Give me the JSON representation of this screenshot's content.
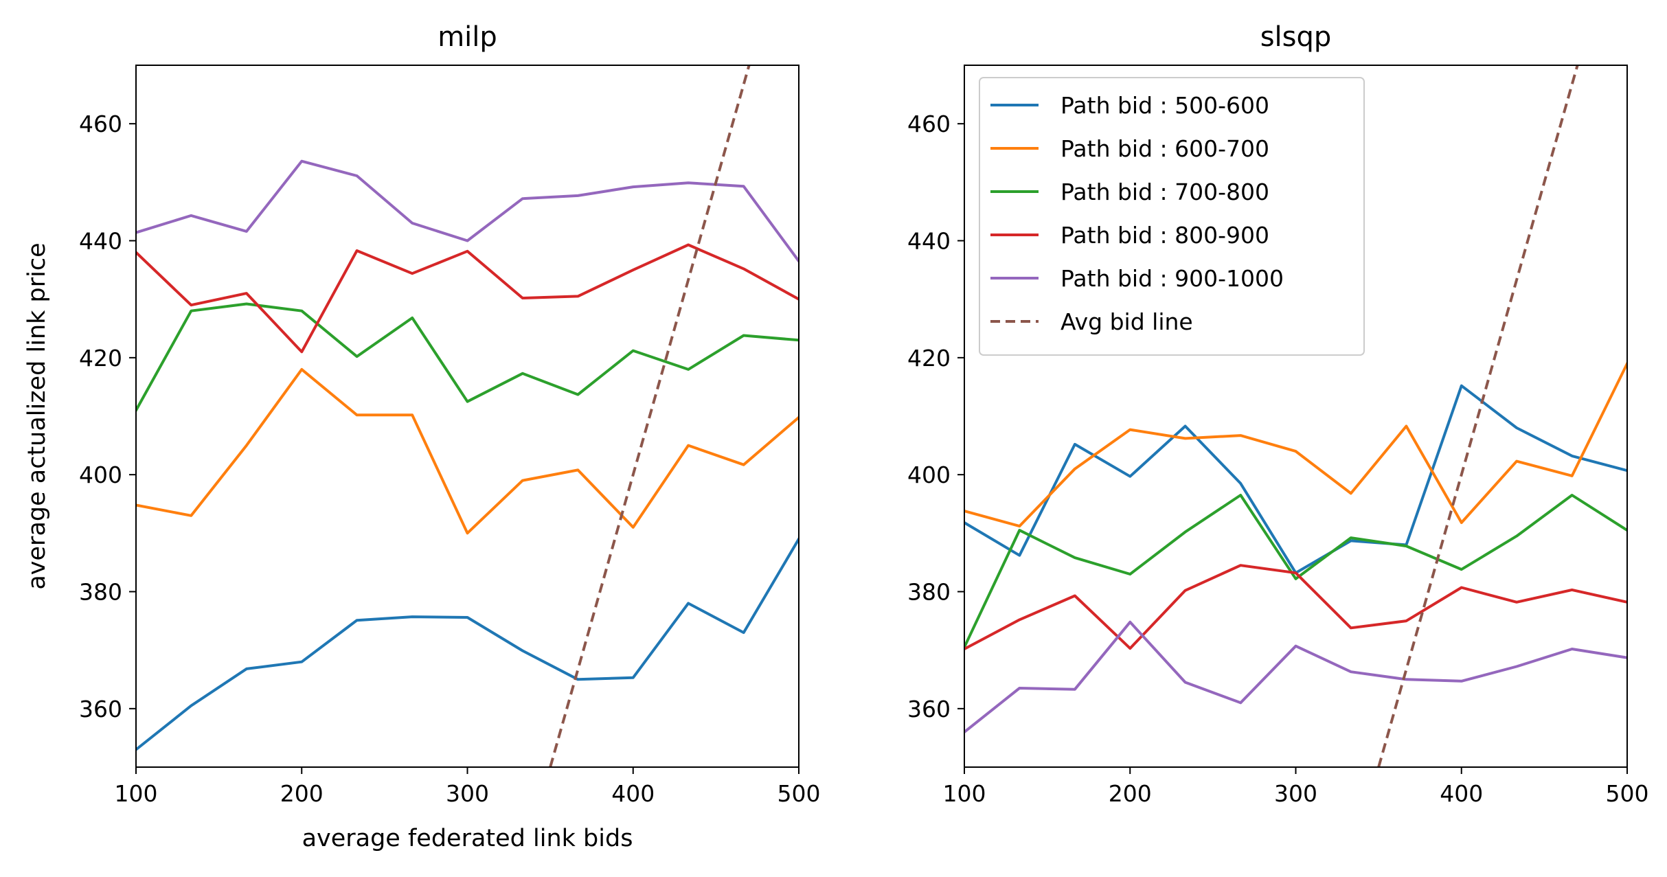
{
  "chart_data": [
    {
      "type": "line",
      "title": "milp",
      "xlabel": "average federated link bids",
      "ylabel": "average actualized link price",
      "xlim": [
        100,
        500
      ],
      "ylim": [
        350,
        470
      ],
      "xticks": [
        "100",
        "200",
        "300",
        "400",
        "500"
      ],
      "yticks": [
        "360",
        "380",
        "400",
        "420",
        "440",
        "460"
      ],
      "grid": false,
      "x": [
        100,
        133.3,
        166.7,
        200,
        233.3,
        266.7,
        300,
        333.3,
        366.7,
        400,
        433.3,
        466.7,
        500
      ],
      "series": [
        {
          "name": "Path bid : 500-600",
          "color": "#1f77b4",
          "values": [
            353.0,
            360.5,
            366.8,
            368.0,
            375.1,
            375.7,
            375.6,
            369.9,
            365.0,
            365.3,
            378.0,
            373.0,
            389.0
          ]
        },
        {
          "name": "Path bid : 600-700",
          "color": "#ff7f0e",
          "values": [
            394.8,
            393.0,
            405.0,
            418.0,
            410.2,
            410.2,
            390.0,
            399.0,
            400.8,
            391.0,
            405.0,
            401.7,
            409.8
          ]
        },
        {
          "name": "Path bid : 700-800",
          "color": "#2ca02c",
          "values": [
            411.0,
            428.0,
            429.2,
            428.0,
            420.2,
            426.8,
            412.5,
            417.3,
            413.7,
            421.2,
            418.0,
            423.8,
            423.0
          ]
        },
        {
          "name": "Path bid : 800-900",
          "color": "#d62728",
          "values": [
            438.0,
            429.0,
            431.0,
            421.0,
            438.3,
            434.4,
            438.2,
            430.2,
            430.5,
            435.0,
            439.3,
            435.2,
            430.0
          ]
        },
        {
          "name": "Path bid : 900-1000",
          "color": "#9467bd",
          "values": [
            441.4,
            444.3,
            441.6,
            453.6,
            451.1,
            443.0,
            440.0,
            447.2,
            447.7,
            449.2,
            449.9,
            449.3,
            436.5
          ]
        }
      ],
      "reference_line": {
        "name": "Avg bid line",
        "color": "#8c564b",
        "style": "dashed",
        "x": [
          350,
          470
        ],
        "y": [
          350,
          470
        ]
      }
    },
    {
      "type": "line",
      "title": "slsqp",
      "xlabel": "",
      "ylabel": "",
      "xlim": [
        100,
        500
      ],
      "ylim": [
        350,
        470
      ],
      "xticks": [
        "100",
        "200",
        "300",
        "400",
        "500"
      ],
      "yticks": [
        "360",
        "380",
        "400",
        "420",
        "440",
        "460"
      ],
      "grid": false,
      "legend_position": "upper-left",
      "x": [
        100,
        133.3,
        166.7,
        200,
        233.3,
        266.7,
        300,
        333.3,
        366.7,
        400,
        433.3,
        466.7,
        500
      ],
      "series": [
        {
          "name": "Path bid : 500-600",
          "color": "#1f77b4",
          "values": [
            391.8,
            386.2,
            405.2,
            399.7,
            408.3,
            398.5,
            383.2,
            388.7,
            388.0,
            415.2,
            408.0,
            403.2,
            400.7
          ]
        },
        {
          "name": "Path bid : 600-700",
          "color": "#ff7f0e",
          "values": [
            393.8,
            391.2,
            401.0,
            407.7,
            406.2,
            406.7,
            404.0,
            396.8,
            408.3,
            391.8,
            402.3,
            399.8,
            419.0
          ]
        },
        {
          "name": "Path bid : 700-800",
          "color": "#2ca02c",
          "values": [
            370.5,
            390.5,
            385.8,
            383.0,
            390.2,
            396.5,
            382.2,
            389.2,
            387.8,
            383.8,
            389.5,
            396.5,
            390.5
          ]
        },
        {
          "name": "Path bid : 800-900",
          "color": "#d62728",
          "values": [
            370.2,
            375.2,
            379.3,
            370.3,
            380.2,
            384.5,
            383.2,
            373.8,
            375.0,
            380.7,
            378.2,
            380.3,
            378.2
          ]
        },
        {
          "name": "Path bid : 900-1000",
          "color": "#9467bd",
          "values": [
            356.0,
            363.5,
            363.3,
            374.8,
            364.5,
            361.0,
            370.7,
            366.3,
            365.0,
            364.7,
            367.2,
            370.2,
            368.7
          ]
        }
      ],
      "reference_line": {
        "name": "Avg bid line",
        "color": "#8c564b",
        "style": "dashed",
        "x": [
          350,
          470
        ],
        "y": [
          350,
          470
        ]
      }
    }
  ]
}
